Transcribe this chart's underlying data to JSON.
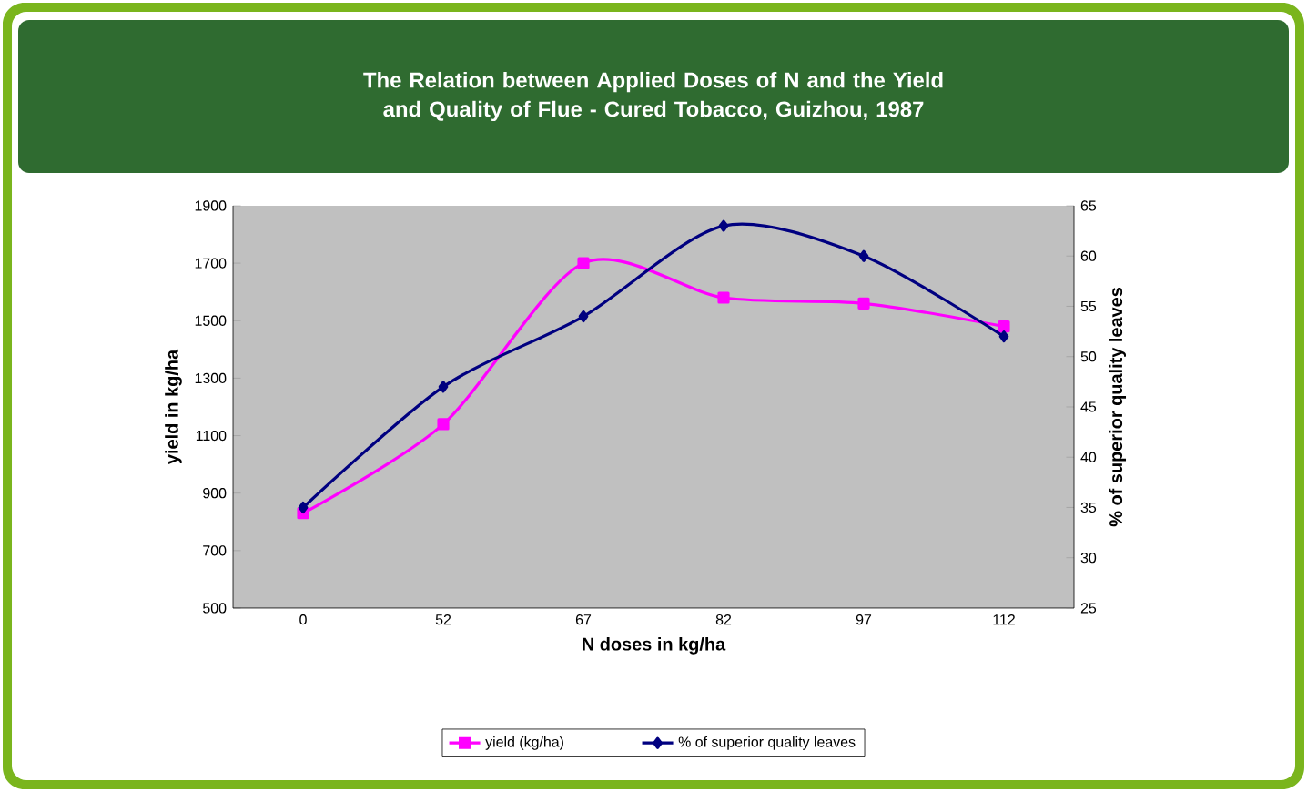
{
  "chart_data": {
    "type": "line",
    "title": "The Relation between Applied Doses of N and the Yield and Quality of Flue - Cured Tobacco, Guizhou, 1987",
    "xlabel": "N doses in kg/ha",
    "ylabel": "yield in kg/ha",
    "y2label": "% of superior quality leaves",
    "categories": [
      "0",
      "52",
      "67",
      "82",
      "97",
      "112"
    ],
    "series": [
      {
        "name": "yield (kg/ha)",
        "color": "#ff00ff",
        "marker": "square",
        "values": [
          830,
          1140,
          1700,
          1580,
          1560,
          1480
        ]
      },
      {
        "name": "% of superior quality leaves",
        "color": "#000080",
        "marker": "diamond",
        "axis": "y2",
        "values": [
          35,
          47,
          54,
          63,
          60,
          52
        ]
      }
    ],
    "ylim": [
      500,
      1900
    ],
    "yticks": [
      500,
      700,
      900,
      1100,
      1300,
      1500,
      1700,
      1900
    ],
    "y2lim": [
      25,
      65
    ],
    "y2ticks": [
      25,
      30,
      35,
      40,
      45,
      50,
      55,
      60,
      65
    ],
    "legend": "bottom",
    "grid": false
  }
}
